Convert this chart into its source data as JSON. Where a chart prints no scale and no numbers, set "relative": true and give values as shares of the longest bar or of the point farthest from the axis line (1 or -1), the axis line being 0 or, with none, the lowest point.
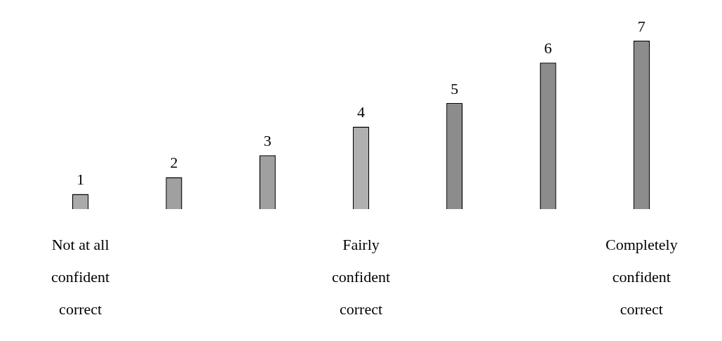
{
  "chart_data": {
    "type": "bar",
    "relative": true,
    "categories": [
      "1",
      "2",
      "3",
      "4",
      "5",
      "6",
      "7"
    ],
    "values": [
      0.09,
      0.19,
      0.32,
      0.49,
      0.63,
      0.87,
      1
    ],
    "colors": [
      "#aaaaaa",
      "#a0a0a0",
      "#a0a0a0",
      "#b0b0b0",
      "#8c8c8c",
      "#8c8c8c",
      "#8c8c8c"
    ],
    "annotations": [
      "Not at all confident correct",
      "Fairly confident correct",
      "Completely confident correct"
    ],
    "grid": false,
    "legend": false
  }
}
